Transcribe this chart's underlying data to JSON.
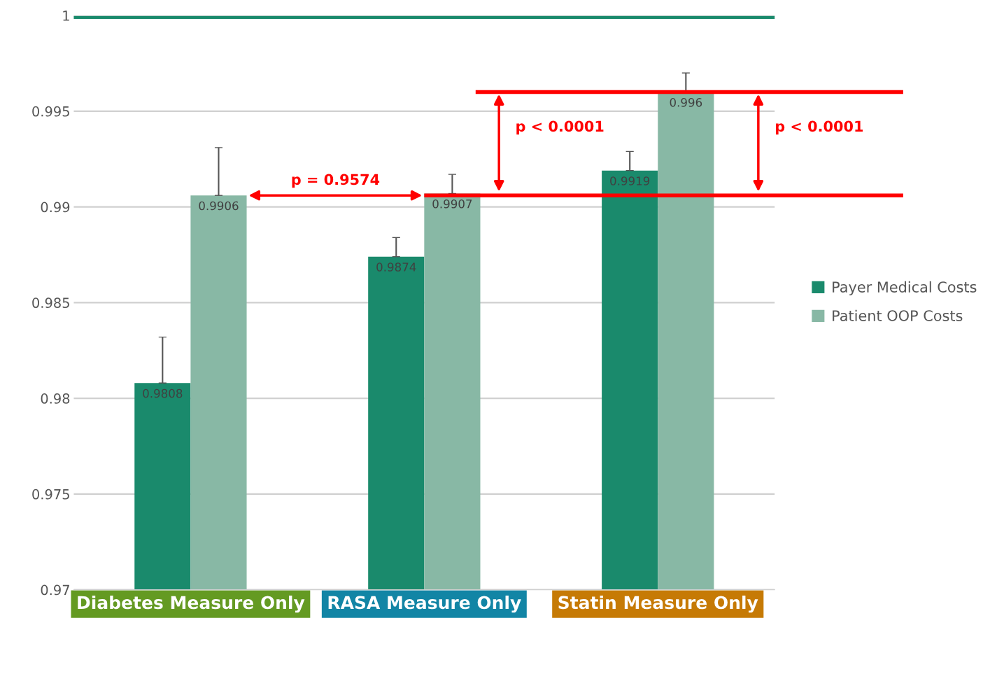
{
  "chart_data": {
    "type": "bar",
    "categories": [
      "Diabetes Measure Only",
      "RASA Measure Only",
      "Statin Measure Only"
    ],
    "series": [
      {
        "name": "Payer Medical Costs",
        "color": "#1a8a6c",
        "values": [
          0.9808,
          0.9874,
          0.9919
        ],
        "errors": [
          [
            0.9808,
            0.9832
          ],
          [
            0.9874,
            0.9884
          ],
          [
            0.9919,
            0.9929
          ]
        ]
      },
      {
        "name": "Patient OOP Costs",
        "color": "#88b8a5",
        "values": [
          0.9906,
          0.9907,
          0.996
        ],
        "errors": [
          [
            0.9906,
            0.9931
          ],
          [
            0.9907,
            0.9917
          ],
          [
            0.996,
            0.997
          ]
        ]
      }
    ],
    "ylim": [
      0.97,
      1.0
    ],
    "yticks": [
      0.97,
      0.975,
      0.98,
      0.985,
      0.99,
      0.995,
      1
    ],
    "grid": "y",
    "legend": "right",
    "data_labels": true,
    "ref_lines": [
      {
        "axis": "y",
        "value": 0.9999,
        "color": "#1a8a6c"
      },
      {
        "axis": "y",
        "value": 0.996,
        "color": "#ff0000"
      },
      {
        "axis": "y",
        "value": 0.9906,
        "color": "#ff0000"
      }
    ],
    "annotations": [
      "p = 0.9574",
      "p < 0.0001",
      "p < 0.0001"
    ]
  }
}
